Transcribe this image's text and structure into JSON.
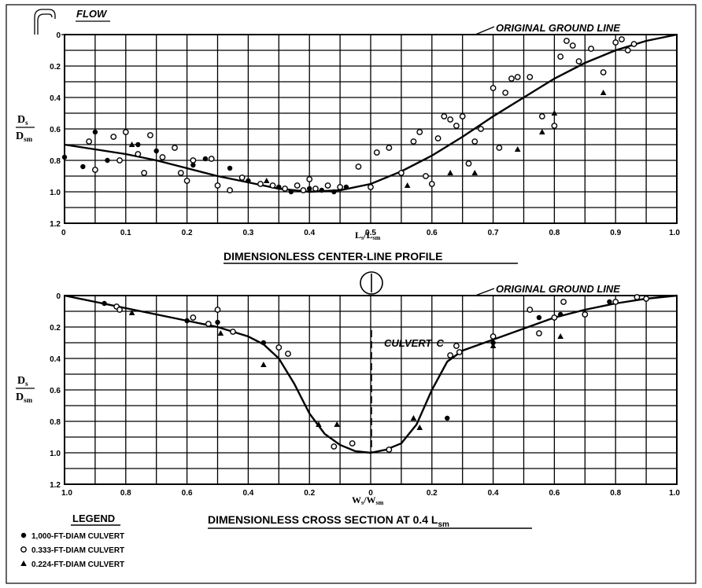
{
  "chart_data": [
    {
      "type": "scatter",
      "title": "DIMENSIONLESS CENTER-LINE PROFILE",
      "xlabel_main": "L",
      "xlabel_sub1": "s",
      "xlabel_mid": "/L",
      "xlabel_sub2": "sm",
      "ylabel_top": "D",
      "ylabel_top_sub": "s",
      "ylabel_bottom": "D",
      "ylabel_bottom_sub": "sm",
      "xlim": [
        0,
        1
      ],
      "ylim": [
        0,
        1.2
      ],
      "y_inverted": true,
      "grid": true,
      "x_ticks": [
        {
          "value": 0,
          "label": "0"
        },
        {
          "value": 0.1,
          "label": "0.1"
        },
        {
          "value": 0.2,
          "label": "0.2"
        },
        {
          "value": 0.3,
          "label": "0.3"
        },
        {
          "value": 0.4,
          "label": "0.4"
        },
        {
          "value": 0.5,
          "label": "0.5"
        },
        {
          "value": 0.6,
          "label": "0.6"
        },
        {
          "value": 0.7,
          "label": "0.7"
        },
        {
          "value": 0.8,
          "label": "0.8"
        },
        {
          "value": 0.9,
          "label": "0.9"
        },
        {
          "value": 1.0,
          "label": "1.0"
        }
      ],
      "y_ticks": [
        {
          "value": 0,
          "label": "0"
        },
        {
          "value": 0.2,
          "label": "0.2"
        },
        {
          "value": 0.4,
          "label": "0.4"
        },
        {
          "value": 0.6,
          "label": "0.6"
        },
        {
          "value": 0.8,
          "label": "0.8"
        },
        {
          "value": 1.0,
          "label": "1.0"
        },
        {
          "value": 1.2,
          "label": "1.2"
        }
      ],
      "annotations": {
        "ground_line": "ORIGINAL GROUND LINE",
        "flow": "FLOW"
      },
      "curve": {
        "x": [
          0,
          0.05,
          0.1,
          0.15,
          0.2,
          0.25,
          0.3,
          0.35,
          0.4,
          0.45,
          0.5,
          0.55,
          0.6,
          0.65,
          0.7,
          0.75,
          0.8,
          0.85,
          0.9,
          0.95,
          1.0
        ],
        "y": [
          0.7,
          0.73,
          0.76,
          0.8,
          0.85,
          0.9,
          0.94,
          0.98,
          1.0,
          0.99,
          0.95,
          0.87,
          0.77,
          0.65,
          0.52,
          0.4,
          0.28,
          0.18,
          0.1,
          0.04,
          0
        ]
      },
      "series": [
        {
          "name": "1,000-FT-DIAM CULVERT",
          "marker": "dot",
          "x": [
            0,
            0.03,
            0.05,
            0.07,
            0.12,
            0.15,
            0.21,
            0.23,
            0.27,
            0.3,
            0.35,
            0.37,
            0.4,
            0.42,
            0.44,
            0.46
          ],
          "y": [
            0.78,
            0.84,
            0.62,
            0.8,
            0.7,
            0.74,
            0.83,
            0.79,
            0.85,
            0.93,
            0.97,
            1.0,
            0.98,
            0.99,
            1.0,
            0.97
          ]
        },
        {
          "name": "0.333-FT-DIAM CULVERT",
          "marker": "circle",
          "x": [
            0.04,
            0.05,
            0.08,
            0.09,
            0.1,
            0.12,
            0.13,
            0.14,
            0.16,
            0.18,
            0.19,
            0.2,
            0.21,
            0.24,
            0.25,
            0.27,
            0.29,
            0.32,
            0.34,
            0.36,
            0.38,
            0.39,
            0.4,
            0.41,
            0.43,
            0.45,
            0.48,
            0.5,
            0.51,
            0.53,
            0.55,
            0.57,
            0.58,
            0.59,
            0.6,
            0.61,
            0.62,
            0.63,
            0.64,
            0.65,
            0.66,
            0.67,
            0.68,
            0.7,
            0.71,
            0.72,
            0.73,
            0.74,
            0.76,
            0.78,
            0.8,
            0.81,
            0.82,
            0.83,
            0.84,
            0.86,
            0.88,
            0.9,
            0.91,
            0.92,
            0.93
          ],
          "y": [
            0.68,
            0.86,
            0.65,
            0.8,
            0.62,
            0.76,
            0.88,
            0.64,
            0.78,
            0.72,
            0.88,
            0.93,
            0.8,
            0.79,
            0.96,
            0.99,
            0.91,
            0.95,
            0.96,
            0.98,
            0.96,
            0.99,
            0.92,
            0.98,
            0.96,
            0.97,
            0.84,
            0.97,
            0.75,
            0.72,
            0.88,
            0.68,
            0.62,
            0.9,
            0.95,
            0.66,
            0.52,
            0.54,
            0.58,
            0.52,
            0.82,
            0.68,
            0.6,
            0.34,
            0.72,
            0.37,
            0.28,
            0.27,
            0.27,
            0.52,
            0.58,
            0.14,
            0.04,
            0.07,
            0.17,
            0.09,
            0.24,
            0.05,
            0.03,
            0.1,
            0.06
          ]
        },
        {
          "name": "0.224-FT-DIAM CULVERT",
          "marker": "triangle",
          "x": [
            0.11,
            0.33,
            0.56,
            0.63,
            0.67,
            0.74,
            0.78,
            0.8,
            0.88
          ],
          "y": [
            0.7,
            0.93,
            0.96,
            0.88,
            0.88,
            0.73,
            0.62,
            0.5,
            0.37
          ]
        }
      ]
    },
    {
      "type": "scatter",
      "title": "DIMENSIONLESS CROSS SECTION AT 0.4 L",
      "title_sub": "sm",
      "xlabel_main": "W",
      "xlabel_sub1": "s",
      "xlabel_mid": "/W",
      "xlabel_sub2": "sm",
      "ylabel_top": "D",
      "ylabel_top_sub": "s",
      "ylabel_bottom": "D",
      "ylabel_bottom_sub": "sm",
      "xlim": [
        -1,
        1
      ],
      "ylim": [
        0,
        1.2
      ],
      "y_inverted": true,
      "grid": true,
      "x_ticks": [
        {
          "value": -1.0,
          "label": "1.0"
        },
        {
          "value": -0.8,
          "label": "0.8"
        },
        {
          "value": -0.6,
          "label": "0.6"
        },
        {
          "value": -0.4,
          "label": "0.4"
        },
        {
          "value": -0.2,
          "label": "0.2"
        },
        {
          "value": 0,
          "label": "0"
        },
        {
          "value": 0.2,
          "label": "0.2"
        },
        {
          "value": 0.4,
          "label": "0.4"
        },
        {
          "value": 0.6,
          "label": "0.6"
        },
        {
          "value": 0.8,
          "label": "0.8"
        },
        {
          "value": 1.0,
          "label": "1.0"
        }
      ],
      "y_ticks": [
        {
          "value": 0,
          "label": "0"
        },
        {
          "value": 0.2,
          "label": "0.2"
        },
        {
          "value": 0.4,
          "label": "0.4"
        },
        {
          "value": 0.6,
          "label": "0.6"
        },
        {
          "value": 0.8,
          "label": "0.8"
        },
        {
          "value": 1.0,
          "label": "1.0"
        },
        {
          "value": 1.2,
          "label": "1.2"
        }
      ],
      "annotations": {
        "ground_line": "ORIGINAL GROUND LINE",
        "culvert": "CULVERT",
        "culvert_symbol": "C",
        "centerline_marker": "1"
      },
      "curve": {
        "x": [
          -1.0,
          -0.9,
          -0.8,
          -0.7,
          -0.6,
          -0.5,
          -0.4,
          -0.35,
          -0.3,
          -0.25,
          -0.2,
          -0.15,
          -0.1,
          -0.05,
          0,
          0.05,
          0.1,
          0.15,
          0.2,
          0.25,
          0.3,
          0.4,
          0.5,
          0.6,
          0.7,
          0.8,
          0.9,
          1.0
        ],
        "y": [
          0,
          0.04,
          0.08,
          0.12,
          0.16,
          0.2,
          0.26,
          0.31,
          0.4,
          0.56,
          0.75,
          0.88,
          0.95,
          0.99,
          1.0,
          0.98,
          0.94,
          0.82,
          0.6,
          0.42,
          0.35,
          0.28,
          0.21,
          0.14,
          0.09,
          0.05,
          0.02,
          0
        ]
      },
      "series": [
        {
          "name": "1,000-FT-DIAM CULVERT",
          "marker": "dot",
          "x": [
            -0.87,
            -0.6,
            -0.5,
            -0.35,
            0.25,
            0.4,
            0.55,
            0.62,
            0.78
          ],
          "y": [
            0.05,
            0.16,
            0.17,
            0.3,
            0.78,
            0.3,
            0.14,
            0.12,
            0.04
          ]
        },
        {
          "name": "0.333-FT-DIAM CULVERT",
          "marker": "circle",
          "x": [
            -0.83,
            -0.82,
            -0.58,
            -0.53,
            -0.5,
            -0.45,
            -0.3,
            -0.27,
            -0.12,
            -0.06,
            0.06,
            0.26,
            0.28,
            0.29,
            0.4,
            0.52,
            0.55,
            0.6,
            0.63,
            0.7,
            0.8,
            0.87,
            0.9
          ],
          "y": [
            0.07,
            0.09,
            0.14,
            0.18,
            0.09,
            0.23,
            0.33,
            0.37,
            0.96,
            0.94,
            0.98,
            0.38,
            0.32,
            0.36,
            0.26,
            0.09,
            0.24,
            0.14,
            0.04,
            0.12,
            0.04,
            0.01,
            0.02
          ]
        },
        {
          "name": "0.224-FT-DIAM CULVERT",
          "marker": "triangle",
          "x": [
            -0.78,
            -0.49,
            -0.35,
            -0.17,
            -0.11,
            0.14,
            0.16,
            0.4,
            0.62
          ],
          "y": [
            0.11,
            0.24,
            0.44,
            0.82,
            0.82,
            0.78,
            0.84,
            0.32,
            0.26
          ]
        }
      ]
    }
  ],
  "legend": {
    "title": "LEGEND",
    "items": [
      {
        "marker": "dot",
        "label": "1,000-FT-DIAM CULVERT"
      },
      {
        "marker": "circle",
        "label": "0.333-FT-DIAM CULVERT"
      },
      {
        "marker": "triangle",
        "label": "0.224-FT-DIAM CULVERT"
      }
    ]
  }
}
